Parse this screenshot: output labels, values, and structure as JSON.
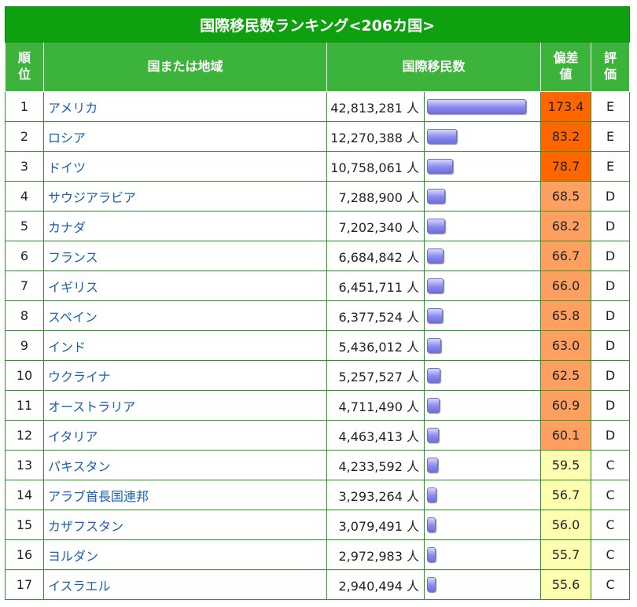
{
  "table_title": "国際移民数ランキング<206カ国>",
  "headers": {
    "rank_line1": "順",
    "rank_line2": "位",
    "country": "国または地域",
    "migrants": "国際移民数",
    "deviation_line1": "偏差",
    "deviation_line2": "値",
    "grade_line1": "評",
    "grade_line2": "価"
  },
  "colors": {
    "title_bg": "#0ea00e",
    "header_bg": "#3cb43c",
    "grade_E": "#ff6600",
    "grade_D": "#ffa060",
    "grade_C": "#ffffb0",
    "link": "#1a5fb4"
  },
  "rows": [
    {
      "rank": "1",
      "country": "アメリカ",
      "migrants": "42,813,281 人",
      "migrants_value": 42813281,
      "deviation": "173.4",
      "grade": "E"
    },
    {
      "rank": "2",
      "country": "ロシア",
      "migrants": "12,270,388 人",
      "migrants_value": 12270388,
      "deviation": "83.2",
      "grade": "E"
    },
    {
      "rank": "3",
      "country": "ドイツ",
      "migrants": "10,758,061 人",
      "migrants_value": 10758061,
      "deviation": "78.7",
      "grade": "E"
    },
    {
      "rank": "4",
      "country": "サウジアラビア",
      "migrants": "7,288,900 人",
      "migrants_value": 7288900,
      "deviation": "68.5",
      "grade": "D"
    },
    {
      "rank": "5",
      "country": "カナダ",
      "migrants": "7,202,340 人",
      "migrants_value": 7202340,
      "deviation": "68.2",
      "grade": "D"
    },
    {
      "rank": "6",
      "country": "フランス",
      "migrants": "6,684,842 人",
      "migrants_value": 6684842,
      "deviation": "66.7",
      "grade": "D"
    },
    {
      "rank": "7",
      "country": "イギリス",
      "migrants": "6,451,711 人",
      "migrants_value": 6451711,
      "deviation": "66.0",
      "grade": "D"
    },
    {
      "rank": "8",
      "country": "スペイン",
      "migrants": "6,377,524 人",
      "migrants_value": 6377524,
      "deviation": "65.8",
      "grade": "D"
    },
    {
      "rank": "9",
      "country": "インド",
      "migrants": "5,436,012 人",
      "migrants_value": 5436012,
      "deviation": "63.0",
      "grade": "D"
    },
    {
      "rank": "10",
      "country": "ウクライナ",
      "migrants": "5,257,527 人",
      "migrants_value": 5257527,
      "deviation": "62.5",
      "grade": "D"
    },
    {
      "rank": "11",
      "country": "オーストラリア",
      "migrants": "4,711,490 人",
      "migrants_value": 4711490,
      "deviation": "60.9",
      "grade": "D"
    },
    {
      "rank": "12",
      "country": "イタリア",
      "migrants": "4,463,413 人",
      "migrants_value": 4463413,
      "deviation": "60.1",
      "grade": "D"
    },
    {
      "rank": "13",
      "country": "パキスタン",
      "migrants": "4,233,592 人",
      "migrants_value": 4233592,
      "deviation": "59.5",
      "grade": "C"
    },
    {
      "rank": "14",
      "country": "アラブ首長国連邦",
      "migrants": "3,293,264 人",
      "migrants_value": 3293264,
      "deviation": "56.7",
      "grade": "C"
    },
    {
      "rank": "15",
      "country": "カザフスタン",
      "migrants": "3,079,491 人",
      "migrants_value": 3079491,
      "deviation": "56.0",
      "grade": "C"
    },
    {
      "rank": "16",
      "country": "ヨルダン",
      "migrants": "2,972,983 人",
      "migrants_value": 2972983,
      "deviation": "55.7",
      "grade": "C"
    },
    {
      "rank": "17",
      "country": "イスラエル",
      "migrants": "2,940,494 人",
      "migrants_value": 2940494,
      "deviation": "55.6",
      "grade": "C"
    }
  ]
}
